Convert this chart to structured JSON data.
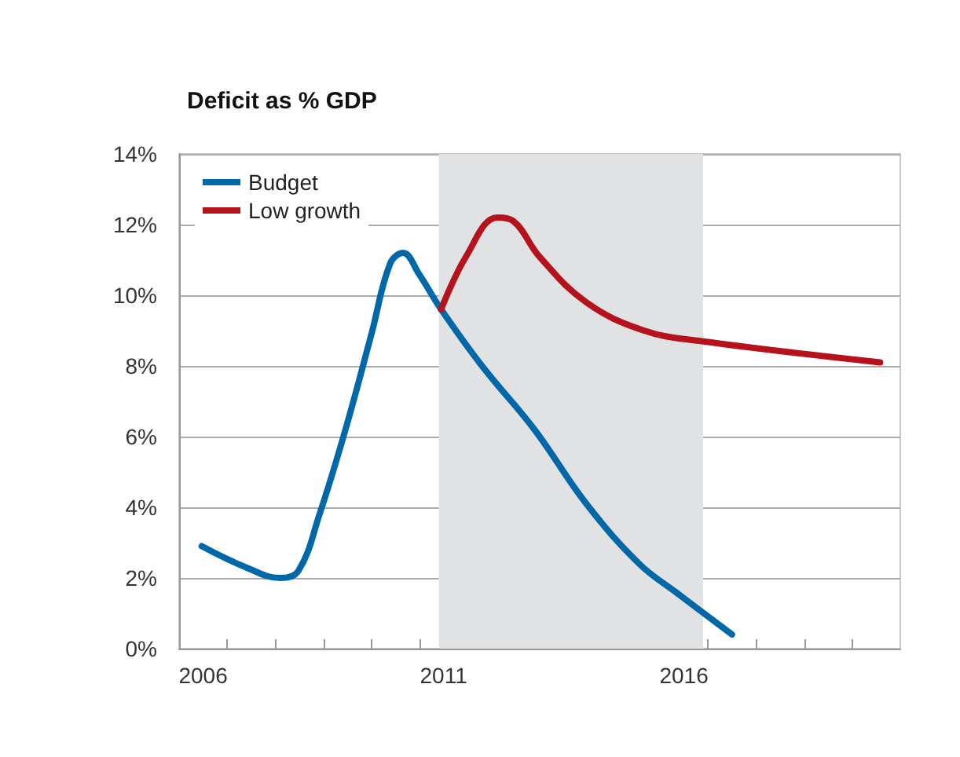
{
  "chart_data": {
    "type": "line",
    "title": "Deficit as % GDP",
    "xlim": [
      2006,
      2021
    ],
    "xticks": [
      {
        "value": 2006.5,
        "label": "2006"
      },
      {
        "value": 2011.5,
        "label": "2011"
      },
      {
        "value": 2016.5,
        "label": "2016"
      },
      {
        "value": 2007,
        "label": null
      },
      {
        "value": 2008,
        "label": null
      },
      {
        "value": 2009,
        "label": null
      },
      {
        "value": 2010,
        "label": null
      },
      {
        "value": 2011,
        "label": null
      },
      {
        "value": 2012,
        "label": null
      },
      {
        "value": 2013,
        "label": null
      },
      {
        "value": 2014,
        "label": null
      },
      {
        "value": 2015,
        "label": null
      },
      {
        "value": 2016,
        "label": null
      },
      {
        "value": 2017,
        "label": null
      },
      {
        "value": 2018,
        "label": null
      },
      {
        "value": 2019,
        "label": null
      },
      {
        "value": 2020,
        "label": null
      }
    ],
    "ylim": [
      0,
      14
    ],
    "yticks": [
      {
        "value": 0,
        "label": "0%"
      },
      {
        "value": 2,
        "label": "2%"
      },
      {
        "value": 4,
        "label": "4%"
      },
      {
        "value": 6,
        "label": "6%"
      },
      {
        "value": 8,
        "label": "8%"
      },
      {
        "value": 10,
        "label": "10%"
      },
      {
        "value": 12,
        "label": "12%"
      },
      {
        "value": 14,
        "label": "14%"
      }
    ],
    "grid": "y",
    "legend": "top left",
    "marker": "none",
    "line_style": "solid",
    "bands": [
      {
        "axis": "x",
        "from": 2011.4,
        "to": 2016.9,
        "color": "#e1e2e4"
      }
    ],
    "series": [
      {
        "name": "Budget",
        "color": "#0068a8",
        "x": [
          2006.47,
          2007.39,
          2008.1,
          2008.48,
          2008.92,
          2009.46,
          2010.0,
          2010.39,
          2010.66,
          2010.99,
          2011.45,
          2012.3,
          2013.39,
          2014.47,
          2015.57,
          2016.33,
          2017.5
        ],
        "values": [
          2.9,
          2.3,
          2.0,
          2.2,
          3.8,
          6.2,
          8.9,
          10.9,
          11.2,
          10.6,
          9.6,
          8.0,
          6.2,
          4.1,
          2.4,
          1.6,
          0.4
        ]
      },
      {
        "name": "Low growth",
        "color": "#b5121b",
        "x": [
          2011.45,
          2011.97,
          2012.62,
          2012.95,
          2013.49,
          2014.47,
          2015.67,
          2016.87,
          2020.58
        ],
        "values": [
          9.6,
          11.1,
          12.2,
          12.1,
          11.1,
          9.8,
          9.0,
          8.7,
          8.1
        ]
      }
    ]
  }
}
